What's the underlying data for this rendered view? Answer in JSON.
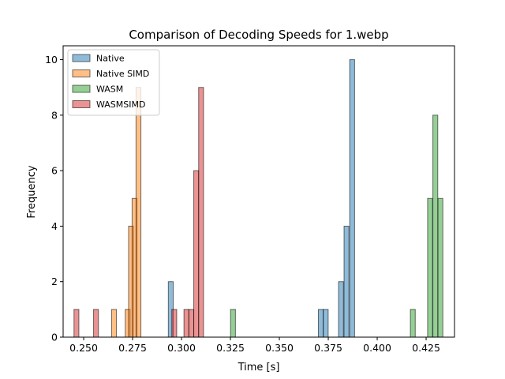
{
  "chart_data": {
    "type": "bar",
    "subtype": "overlaid-histogram",
    "title": "Comparison of Decoding Speeds for 1.webp",
    "xlabel": "Time [s]",
    "ylabel": "Frequency",
    "xlim": [
      0.2395,
      0.4395
    ],
    "ylim": [
      0,
      10.5
    ],
    "x_tick_labels": [
      "0.250",
      "0.275",
      "0.300",
      "0.325",
      "0.350",
      "0.375",
      "0.400",
      "0.425"
    ],
    "y_tick_labels": [
      "0",
      "2",
      "4",
      "6",
      "8",
      "10"
    ],
    "bin_width": 0.0025,
    "grid": false,
    "legend_position": "upper-left",
    "series": [
      {
        "name": "Native",
        "color": "#1f77b4",
        "bins": [
          {
            "x": 0.2945,
            "count": 2
          },
          {
            "x": 0.3712,
            "count": 1
          },
          {
            "x": 0.3737,
            "count": 1
          },
          {
            "x": 0.3815,
            "count": 2
          },
          {
            "x": 0.3843,
            "count": 4
          },
          {
            "x": 0.3872,
            "count": 10
          }
        ]
      },
      {
        "name": "Native SIMD",
        "color": "#ff7f0e",
        "bins": [
          {
            "x": 0.2655,
            "count": 1
          },
          {
            "x": 0.2725,
            "count": 1
          },
          {
            "x": 0.2742,
            "count": 4
          },
          {
            "x": 0.276,
            "count": 5
          },
          {
            "x": 0.278,
            "count": 9
          }
        ]
      },
      {
        "name": "WASM",
        "color": "#2ca02c",
        "bins": [
          {
            "x": 0.3263,
            "count": 1
          },
          {
            "x": 0.4182,
            "count": 1
          },
          {
            "x": 0.427,
            "count": 5
          },
          {
            "x": 0.4297,
            "count": 8
          },
          {
            "x": 0.4323,
            "count": 5
          }
        ]
      },
      {
        "name": "WASMSIMD",
        "color": "#d62728",
        "bins": [
          {
            "x": 0.2463,
            "count": 1
          },
          {
            "x": 0.2563,
            "count": 1
          },
          {
            "x": 0.2963,
            "count": 1
          },
          {
            "x": 0.3025,
            "count": 1
          },
          {
            "x": 0.305,
            "count": 1
          },
          {
            "x": 0.3075,
            "count": 6
          },
          {
            "x": 0.31,
            "count": 9
          }
        ]
      }
    ]
  }
}
